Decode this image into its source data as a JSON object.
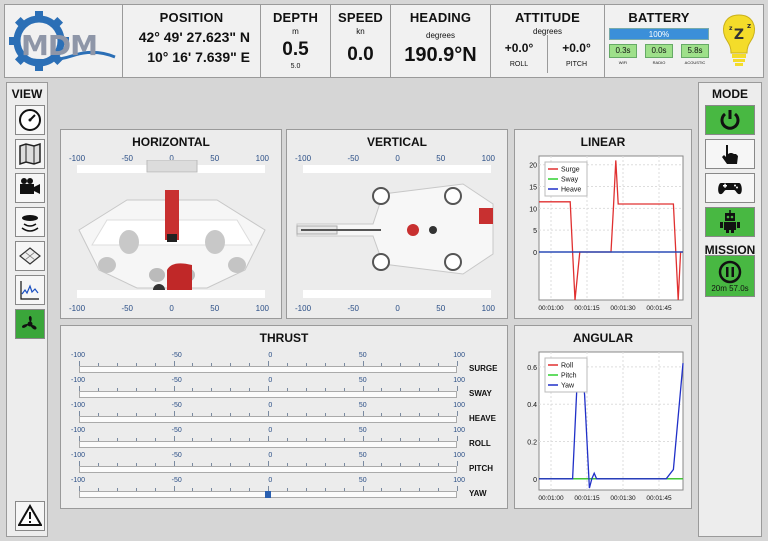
{
  "header": {
    "logo_text": "MDM",
    "position": {
      "title": "POSITION",
      "lat": "42° 49' 27.623\" N",
      "lon": "10° 16' 7.639\" E"
    },
    "depth": {
      "title": "DEPTH",
      "unit": "m",
      "value": "0.5",
      "sub": "5.0"
    },
    "speed": {
      "title": "SPEED",
      "unit": "kn",
      "value": "0.0"
    },
    "heading": {
      "title": "HEADING",
      "unit": "degrees",
      "value": "190.9°N"
    },
    "attitude": {
      "title": "ATTITUDE",
      "unit": "degrees",
      "roll_value": "+0.0°",
      "roll_label": "ROLL",
      "pitch_value": "+0.0°",
      "pitch_label": "PITCH"
    },
    "battery": {
      "title": "BATTERY",
      "percent": "100%",
      "level": 1.0,
      "wifi": "0.3s",
      "wifi_label": "WIFI",
      "radio": "0.0s",
      "radio_label": "RADIO",
      "acoustic": "5.8s",
      "acoustic_label": "ACOUSTIC"
    }
  },
  "view": {
    "title": "VIEW"
  },
  "mode": {
    "title": "MODE",
    "mission_title": "MISSION",
    "mission_time": "20m 57.0s"
  },
  "horizontal": {
    "title": "HORIZONTAL",
    "ticks": [
      "-100",
      "-50",
      "0",
      "50",
      "100"
    ]
  },
  "vertical": {
    "title": "VERTICAL",
    "ticks": [
      "-100",
      "-50",
      "0",
      "50",
      "100"
    ]
  },
  "thrust": {
    "title": "THRUST",
    "ticks": [
      "-100",
      "-50",
      "0",
      "50",
      "100"
    ],
    "rows": [
      {
        "label": "SURGE",
        "value": 0
      },
      {
        "label": "SWAY",
        "value": 0
      },
      {
        "label": "HEAVE",
        "value": 0
      },
      {
        "label": "ROLL",
        "value": 0
      },
      {
        "label": "PITCH",
        "value": 0
      },
      {
        "label": "YAW",
        "value": 0
      }
    ]
  },
  "colors": {
    "accent_green": "#48b842",
    "accent_blue": "#3b8fd9",
    "series_red": "#e03030",
    "series_green": "#30d030",
    "series_blue": "#2030c8"
  },
  "chart_data": [
    {
      "type": "line",
      "title": "LINEAR",
      "x_ticks": [
        "00:01:00",
        "00:01:15",
        "00:01:30",
        "00:01:45"
      ],
      "y_ticks": [
        "0",
        "5",
        "10",
        "15",
        "20"
      ],
      "ylim": [
        -11,
        22
      ],
      "xlim": [
        0,
        60
      ],
      "legend": "top-left",
      "grid": true,
      "series": [
        {
          "name": "Surge",
          "color": "#e03030",
          "x": [
            0,
            12,
            13,
            14,
            15,
            17,
            20,
            29,
            30,
            31,
            32,
            33,
            36,
            38,
            39,
            40,
            41,
            42,
            55,
            56,
            57,
            58,
            59,
            60
          ],
          "y": [
            11.5,
            11.5,
            11.5,
            0,
            -11,
            0,
            0,
            0,
            0,
            10,
            21,
            11,
            11,
            11,
            11,
            11,
            11,
            11,
            11,
            11,
            0,
            -11,
            0,
            0
          ]
        },
        {
          "name": "Sway",
          "color": "#30d030",
          "x": [
            0,
            60
          ],
          "y": [
            0,
            0
          ]
        },
        {
          "name": "Heave",
          "color": "#2030c8",
          "x": [
            0,
            60
          ],
          "y": [
            0,
            0
          ]
        }
      ]
    },
    {
      "type": "line",
      "title": "ANGULAR",
      "x_ticks": [
        "00:01:00",
        "00:01:15",
        "00:01:30",
        "00:01:45"
      ],
      "y_ticks": [
        "0",
        "0.2",
        "0.4",
        "0.6"
      ],
      "ylim": [
        -0.06,
        0.68
      ],
      "xlim": [
        0,
        60
      ],
      "legend": "top-left",
      "grid": true,
      "series": [
        {
          "name": "Roll",
          "color": "#e03030",
          "x": [
            0,
            60
          ],
          "y": [
            0,
            0
          ]
        },
        {
          "name": "Pitch",
          "color": "#30d030",
          "x": [
            0,
            60
          ],
          "y": [
            0,
            0
          ]
        },
        {
          "name": "Yaw",
          "color": "#2030c8",
          "x": [
            0,
            12,
            14,
            16,
            17,
            18,
            19,
            20,
            21,
            22,
            23,
            24,
            25,
            26,
            27,
            30,
            32,
            40,
            48,
            49,
            51,
            53,
            56,
            60
          ],
          "y": [
            0,
            0,
            0,
            0.55,
            0.6,
            0.59,
            0.45,
            0.2,
            -0.05,
            0,
            0.03,
            0,
            0,
            0,
            0,
            0,
            0,
            0,
            0,
            0,
            0,
            0,
            0.05,
            0.62
          ]
        }
      ]
    }
  ]
}
